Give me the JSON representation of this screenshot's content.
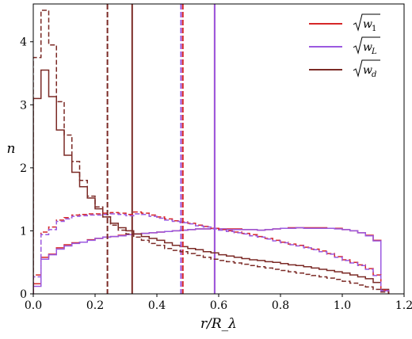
{
  "chart_data": {
    "type": "line",
    "xlabel": "r/R_λ",
    "ylabel": "n",
    "xlim": [
      0,
      1.2
    ],
    "ylim": [
      0,
      4.6
    ],
    "xticks": [
      "0.0",
      "0.2",
      "0.4",
      "0.6",
      "0.8",
      "1.0",
      "1.2"
    ],
    "yticks": [
      "0",
      "1",
      "2",
      "3",
      "4"
    ],
    "grid": false,
    "legend_position": "top-right",
    "bin_width": 0.025,
    "series": [
      {
        "name": "√w₁",
        "legend_symbol": "√",
        "legend_base": "w",
        "legend_sub": "1",
        "color": "#d62728",
        "style": "solid",
        "values": [
          0.16,
          0.58,
          0.63,
          0.73,
          0.78,
          0.81,
          0.82,
          0.86,
          0.88,
          0.9,
          0.91,
          0.93,
          0.94,
          0.95,
          0.96,
          0.97,
          0.98,
          0.99,
          1.0,
          1.01,
          1.02,
          1.03,
          1.03,
          1.04,
          1.03,
          1.03,
          1.03,
          1.02,
          1.02,
          1.01,
          1.02,
          1.03,
          1.04,
          1.05,
          1.05,
          1.05,
          1.05,
          1.05,
          1.04,
          1.04,
          1.02,
          1.0,
          0.97,
          0.93,
          0.85,
          0.06
        ],
        "mean_line": 0.587
      },
      {
        "name": "√w_L",
        "legend_symbol": "√",
        "legend_base": "w",
        "legend_sub": "L",
        "color": "#9b59e0",
        "style": "solid",
        "values": [
          0.12,
          0.55,
          0.62,
          0.71,
          0.76,
          0.8,
          0.82,
          0.85,
          0.88,
          0.9,
          0.91,
          0.92,
          0.94,
          0.95,
          0.96,
          0.97,
          0.98,
          0.99,
          1.0,
          1.01,
          1.02,
          1.03,
          1.03,
          1.04,
          1.03,
          1.02,
          1.02,
          1.02,
          1.02,
          1.01,
          1.02,
          1.03,
          1.04,
          1.04,
          1.05,
          1.04,
          1.04,
          1.04,
          1.04,
          1.03,
          1.02,
          1.0,
          0.97,
          0.92,
          0.84,
          0.05
        ],
        "mean_line": 0.587
      },
      {
        "name": "√w_d",
        "legend_symbol": "√",
        "legend_base": "w",
        "legend_sub": "d",
        "color": "#7b2a26",
        "style": "solid",
        "values": [
          3.1,
          3.55,
          3.13,
          2.6,
          2.2,
          1.93,
          1.7,
          1.52,
          1.35,
          1.22,
          1.12,
          1.05,
          1.0,
          0.95,
          0.91,
          0.88,
          0.85,
          0.81,
          0.77,
          0.75,
          0.72,
          0.7,
          0.67,
          0.65,
          0.62,
          0.6,
          0.58,
          0.56,
          0.54,
          0.53,
          0.51,
          0.5,
          0.48,
          0.46,
          0.45,
          0.43,
          0.41,
          0.39,
          0.37,
          0.35,
          0.33,
          0.3,
          0.27,
          0.24,
          0.18,
          0.07
        ],
        "mean_line": 0.32
      },
      {
        "name": "",
        "color": "#d62728",
        "style": "dashed",
        "values": [
          0.3,
          0.98,
          1.06,
          1.17,
          1.21,
          1.25,
          1.26,
          1.27,
          1.27,
          1.28,
          1.29,
          1.28,
          1.26,
          1.3,
          1.28,
          1.25,
          1.22,
          1.19,
          1.16,
          1.14,
          1.12,
          1.09,
          1.07,
          1.04,
          1.02,
          1.0,
          0.98,
          0.96,
          0.94,
          0.91,
          0.88,
          0.85,
          0.82,
          0.79,
          0.77,
          0.74,
          0.71,
          0.68,
          0.64,
          0.59,
          0.54,
          0.5,
          0.46,
          0.4,
          0.3,
          0.06
        ],
        "mean_line": 0.484
      },
      {
        "name": "",
        "color": "#9b59e0",
        "style": "dashed",
        "values": [
          0.27,
          0.94,
          1.02,
          1.15,
          1.19,
          1.23,
          1.24,
          1.25,
          1.25,
          1.26,
          1.27,
          1.26,
          1.24,
          1.27,
          1.26,
          1.23,
          1.2,
          1.17,
          1.15,
          1.13,
          1.11,
          1.08,
          1.06,
          1.03,
          1.01,
          0.99,
          0.97,
          0.95,
          0.92,
          0.9,
          0.87,
          0.84,
          0.81,
          0.78,
          0.76,
          0.73,
          0.7,
          0.67,
          0.63,
          0.58,
          0.53,
          0.49,
          0.45,
          0.39,
          0.29,
          0.05
        ],
        "mean_line": 0.478
      },
      {
        "name": "",
        "color": "#7b2a26",
        "style": "dashed",
        "values": [
          3.75,
          4.5,
          3.95,
          3.05,
          2.52,
          2.1,
          1.8,
          1.55,
          1.38,
          1.22,
          1.09,
          1.01,
          0.95,
          0.9,
          0.85,
          0.8,
          0.77,
          0.72,
          0.69,
          0.67,
          0.64,
          0.61,
          0.58,
          0.55,
          0.53,
          0.51,
          0.49,
          0.47,
          0.45,
          0.43,
          0.41,
          0.39,
          0.37,
          0.35,
          0.33,
          0.31,
          0.29,
          0.27,
          0.25,
          0.23,
          0.2,
          0.17,
          0.14,
          0.11,
          0.07,
          0.03
        ],
        "mean_line": 0.24
      }
    ]
  }
}
